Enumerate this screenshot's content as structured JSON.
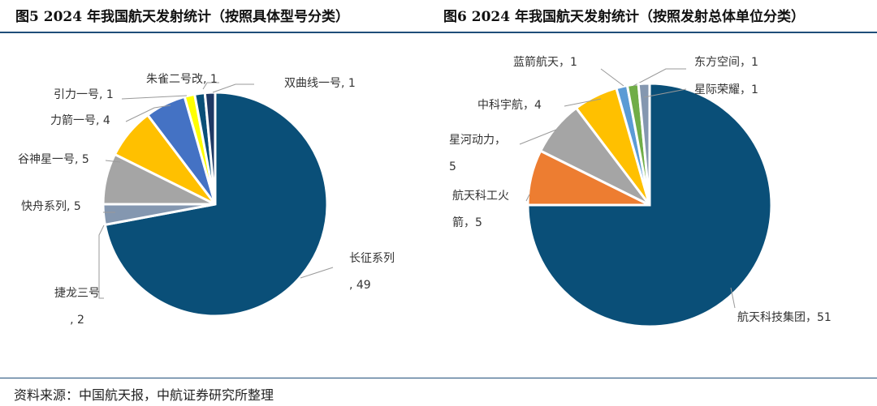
{
  "chart_data": [
    {
      "type": "pie",
      "title": "图5  2024 年我国航天发射统计（按照具体型号分类）",
      "slices": [
        {
          "name": "长征系列",
          "value": 49,
          "color": "#0a4f78",
          "label": [
            "长征系列",
            ", 49"
          ]
        },
        {
          "name": "捷龙三号",
          "value": 2,
          "color": "#8497b0",
          "label": [
            "捷龙三号",
            ", 2"
          ]
        },
        {
          "name": "快舟系列",
          "value": 5,
          "color": "#a5a5a5",
          "label": [
            "快舟系列, 5"
          ]
        },
        {
          "name": "谷神星一号",
          "value": 5,
          "color": "#ffc000",
          "label": [
            "谷神星一号, 5"
          ]
        },
        {
          "name": "力箭一号",
          "value": 4,
          "color": "#4472c4",
          "label": [
            "力箭一号, 4"
          ]
        },
        {
          "name": "引力一号",
          "value": 1,
          "color": "#ffff00",
          "label": [
            "引力一号, 1"
          ]
        },
        {
          "name": "朱雀二号改",
          "value": 1,
          "color": "#0a4f78",
          "label": [
            "朱雀二号改, 1"
          ]
        },
        {
          "name": "双曲线一号",
          "value": 1,
          "color": "#1f3864",
          "label": [
            "双曲线一号, 1"
          ]
        }
      ]
    },
    {
      "type": "pie",
      "title": "图6  2024 年我国航天发射统计（按照发射总体单位分类）",
      "slices": [
        {
          "name": "航天科技集团",
          "value": 51,
          "color": "#0a4f78",
          "label": [
            "航天科技集团，51"
          ]
        },
        {
          "name": "航天科工火箭",
          "value": 5,
          "color": "#ed7d31",
          "label": [
            "航天科工火",
            "箭，5"
          ]
        },
        {
          "name": "星河动力",
          "value": 5,
          "color": "#a5a5a5",
          "label": [
            "星河动力，",
            "5"
          ]
        },
        {
          "name": "中科宇航",
          "value": 4,
          "color": "#ffc000",
          "label": [
            "中科宇航，4"
          ]
        },
        {
          "name": "蓝箭航天",
          "value": 1,
          "color": "#5b9bd5",
          "label": [
            "蓝箭航天，1"
          ]
        },
        {
          "name": "东方空间",
          "value": 1,
          "color": "#70ad47",
          "label": [
            "东方空间，1"
          ]
        },
        {
          "name": "星际荣耀",
          "value": 1,
          "color": "#8497b0",
          "label": [
            "星际荣耀，1"
          ]
        }
      ]
    }
  ],
  "source": "资料来源：中国航天报，中航证券研究所整理"
}
